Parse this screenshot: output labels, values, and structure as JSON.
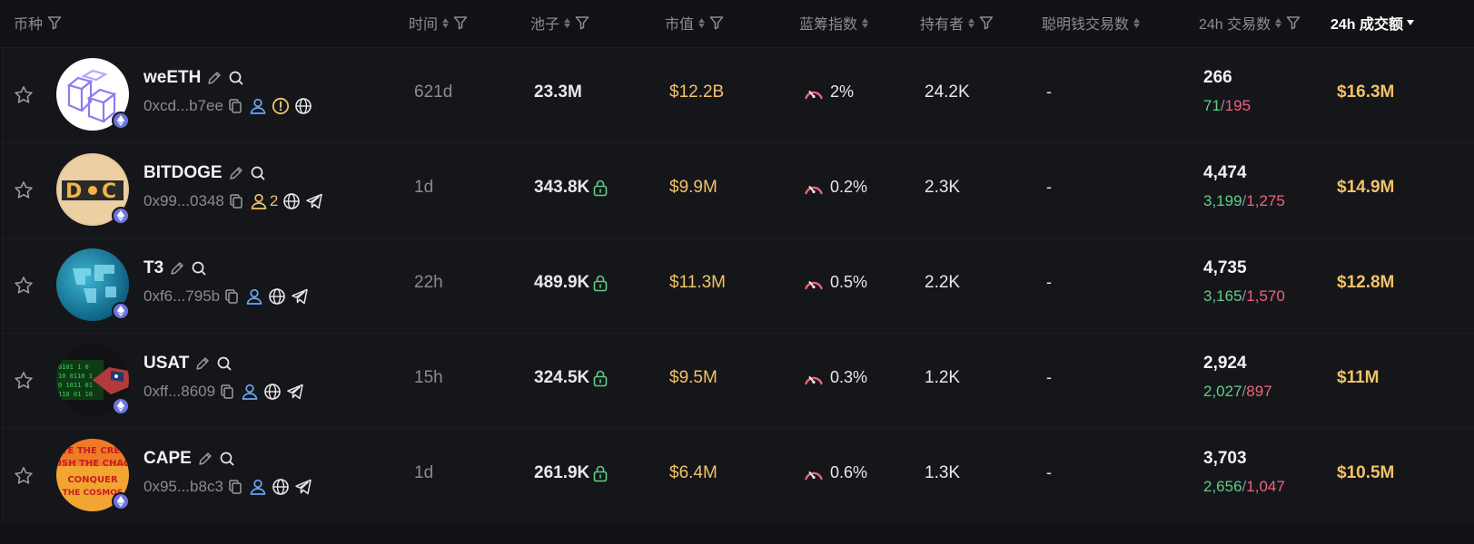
{
  "header": {
    "coin": "币种",
    "time": "时间",
    "pool": "池子",
    "mcap": "市值",
    "bluechip": "蓝筹指数",
    "holders": "持有者",
    "smart_money": "聪明钱交易数",
    "tx24h": "24h 交易数",
    "vol24h": "24h 成交额"
  },
  "colors": {
    "background": "#111215",
    "row_background": "#15161a",
    "muted": "#8a8b92",
    "gold": "#f2c265",
    "buy_green": "#5fce84",
    "sell_red": "#f0637b",
    "link_blue": "#6aa7f5",
    "chain_eth": "#6e74dd"
  },
  "rows": [
    {
      "name": "weETH",
      "address": "0xcd...b7ee",
      "age": "621d",
      "pool": "23.3M",
      "pool_locked": false,
      "mcap": "$12.2B",
      "bluechip": "2%",
      "holders": "24.2K",
      "smart_money": "-",
      "tx": "266",
      "buys": "71",
      "sells": "195",
      "volume": "$16.3M",
      "holder_count_badge": "",
      "has_warning": true,
      "has_telegram": false,
      "logo": "weeth-logo"
    },
    {
      "name": "BITDOGE",
      "address": "0x99...0348",
      "age": "1d",
      "pool": "343.8K",
      "pool_locked": true,
      "mcap": "$9.9M",
      "bluechip": "0.2%",
      "holders": "2.3K",
      "smart_money": "-",
      "tx": "4,474",
      "buys": "3,199",
      "sells": "1,275",
      "volume": "$14.9M",
      "holder_count_badge": "2",
      "has_warning": false,
      "has_telegram": true,
      "logo": "bitdoge-logo"
    },
    {
      "name": "T3",
      "address": "0xf6...795b",
      "age": "22h",
      "pool": "489.9K",
      "pool_locked": true,
      "mcap": "$11.3M",
      "bluechip": "0.5%",
      "holders": "2.2K",
      "smart_money": "-",
      "tx": "4,735",
      "buys": "3,165",
      "sells": "1,570",
      "volume": "$12.8M",
      "holder_count_badge": "",
      "has_warning": false,
      "has_telegram": true,
      "logo": "t3-logo"
    },
    {
      "name": "USAT",
      "address": "0xff...8609",
      "age": "15h",
      "pool": "324.5K",
      "pool_locked": true,
      "mcap": "$9.5M",
      "bluechip": "0.3%",
      "holders": "1.2K",
      "smart_money": "-",
      "tx": "2,924",
      "buys": "2,027",
      "sells": "897",
      "volume": "$11M",
      "holder_count_badge": "",
      "has_warning": false,
      "has_telegram": true,
      "logo": "usat-logo"
    },
    {
      "name": "CAPE",
      "address": "0x95...b8c3",
      "age": "1d",
      "pool": "261.9K",
      "pool_locked": true,
      "mcap": "$6.4M",
      "bluechip": "0.6%",
      "holders": "1.3K",
      "smart_money": "-",
      "tx": "3,703",
      "buys": "2,656",
      "sells": "1,047",
      "volume": "$10.5M",
      "holder_count_badge": "",
      "has_warning": false,
      "has_telegram": true,
      "logo": "cape-logo"
    }
  ]
}
